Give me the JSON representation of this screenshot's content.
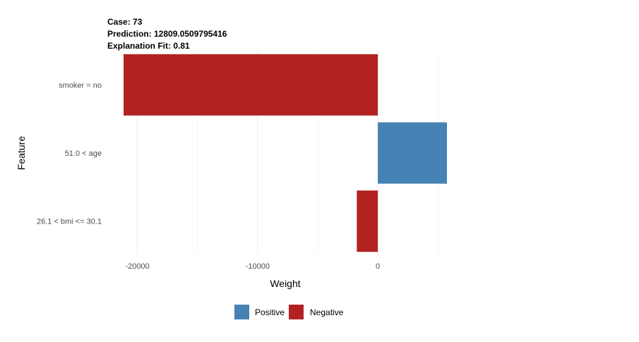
{
  "header": {
    "case_line": "Case: 73",
    "prediction_line": "Prediction: 12809.0509795416",
    "fit_line": "Explanation Fit: 0.81"
  },
  "legend": {
    "items": [
      {
        "label": "Positive",
        "color": "#4682b4"
      },
      {
        "label": "Negative",
        "color": "#b22222"
      }
    ]
  },
  "chart_data": {
    "type": "bar",
    "orientation": "horizontal",
    "categories": [
      "smoker = no",
      "51.0 < age",
      "26.1 < bmi <= 30.1"
    ],
    "values": [
      -21150,
      5750,
      -1750
    ],
    "signs": [
      "Negative",
      "Positive",
      "Negative"
    ],
    "xlabel": "Weight",
    "ylabel": "Feature",
    "xlim": [
      -21150,
      5750
    ],
    "xticks": [
      -20000,
      -10000,
      0
    ],
    "xtick_labels": [
      "-20000",
      "-10000",
      "0"
    ],
    "grid": true,
    "legend_position": "bottom",
    "colors": {
      "Positive": "#4682b4",
      "Negative": "#b22222"
    }
  }
}
